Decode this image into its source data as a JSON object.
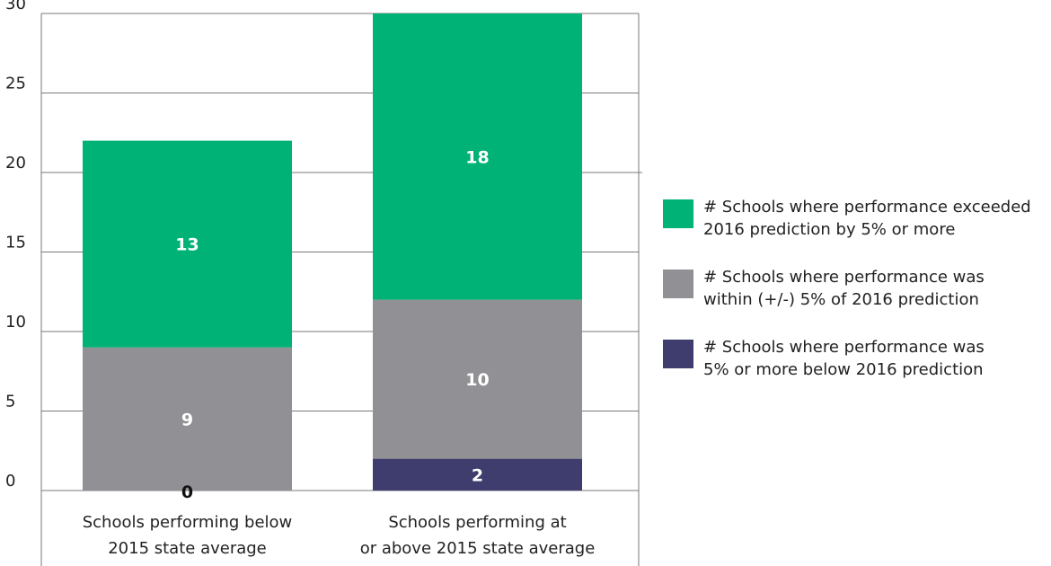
{
  "chart_data": {
    "type": "bar",
    "stacked": true,
    "categories": [
      "Schools performing below\n2015 state average",
      "Schools performing at\nor above 2015 state average"
    ],
    "series": [
      {
        "name": "# Schools where performance was\n5% or more below 2016 prediction",
        "values": [
          0,
          2
        ],
        "color": "#3f3d6e",
        "label_color": "#ffffff",
        "zero_label_color": "#111111"
      },
      {
        "name": "# Schools where performance was\nwithin (+/-) 5% of 2016 prediction",
        "values": [
          9,
          10
        ],
        "color": "#919195",
        "label_color": "#ffffff",
        "zero_label_color": "#111111"
      },
      {
        "name": "# Schools where performance exceeded\n2016 prediction by 5% or more",
        "values": [
          13,
          18
        ],
        "color": "#00b275",
        "label_color": "#ffffff",
        "zero_label_color": "#111111"
      }
    ],
    "y_ticks": [
      "0",
      "5",
      "10",
      "15",
      "20",
      "25",
      "30"
    ],
    "ylim": [
      0,
      30
    ],
    "grid": true,
    "legend_position": "right",
    "title": "",
    "xlabel": "",
    "ylabel": ""
  },
  "legend_order": [
    2,
    1,
    0
  ]
}
